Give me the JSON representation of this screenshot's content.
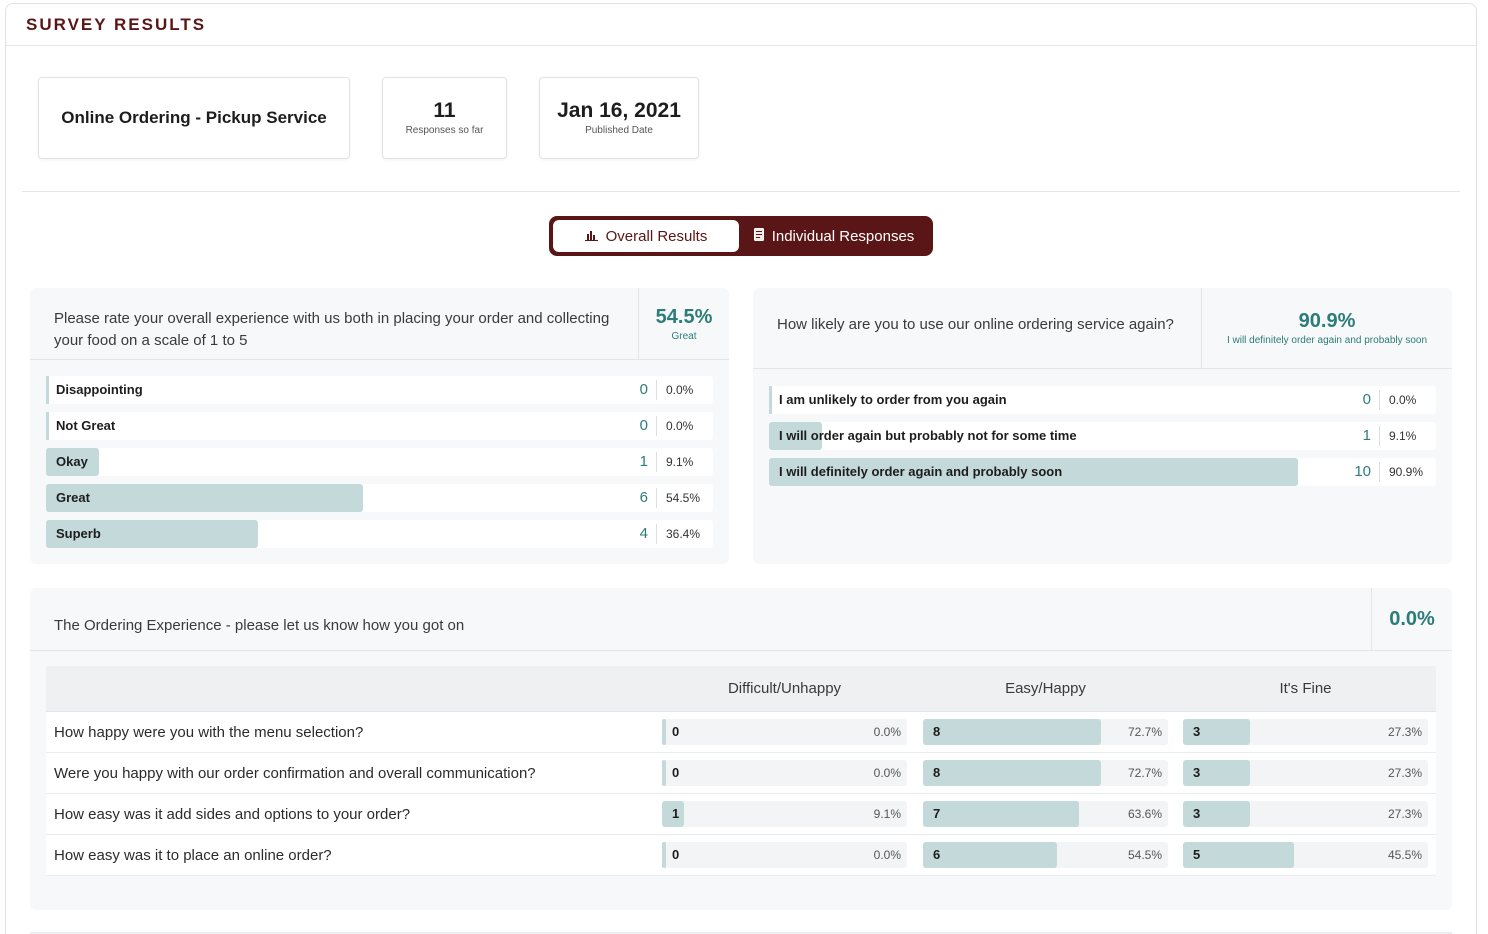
{
  "header": {
    "title": "SURVEY RESULTS"
  },
  "summary": {
    "survey_name": "Online Ordering - Pickup Service",
    "responses_value": "11",
    "responses_label": "Responses so far",
    "published_value": "Jan 16, 2021",
    "published_label": "Published Date"
  },
  "tabs": {
    "overall": {
      "label": "Overall Results",
      "icon": "bar-chart-icon"
    },
    "individual": {
      "label": "Individual Responses",
      "icon": "document-icon"
    }
  },
  "q1": {
    "text": "Please rate your overall experience with us both in placing your order and collecting your food on a scale of 1 to 5",
    "stat_pct": "54.5%",
    "stat_label": "Great",
    "options": [
      {
        "label": "Disappointing",
        "count": "0",
        "pct": "0.0%",
        "fraction": 0.0
      },
      {
        "label": "Not Great",
        "count": "0",
        "pct": "0.0%",
        "fraction": 0.0
      },
      {
        "label": "Okay",
        "count": "1",
        "pct": "9.1%",
        "fraction": 0.091
      },
      {
        "label": "Great",
        "count": "6",
        "pct": "54.5%",
        "fraction": 0.545
      },
      {
        "label": "Superb",
        "count": "4",
        "pct": "36.4%",
        "fraction": 0.364
      }
    ]
  },
  "q2": {
    "text": "How likely are you to use our online ordering service again?",
    "stat_pct": "90.9%",
    "stat_label": "I will definitely order again and probably soon",
    "options": [
      {
        "label": "I am unlikely to order from you again",
        "count": "0",
        "pct": "0.0%",
        "fraction": 0.0
      },
      {
        "label": "I will order again but probably not for some time",
        "count": "1",
        "pct": "9.1%",
        "fraction": 0.091
      },
      {
        "label": "I will definitely order again and probably soon",
        "count": "10",
        "pct": "90.9%",
        "fraction": 0.909
      }
    ]
  },
  "q3": {
    "text": "The Ordering Experience - please let us know how you got on",
    "stat_pct": "0.0%",
    "columns": [
      "Difficult/Unhappy",
      "Easy/Happy",
      "It's Fine"
    ],
    "rows": [
      {
        "question": "How happy were you with the menu selection?",
        "cells": [
          {
            "count": "0",
            "pct": "0.0%",
            "fraction": 0.0
          },
          {
            "count": "8",
            "pct": "72.7%",
            "fraction": 0.727
          },
          {
            "count": "3",
            "pct": "27.3%",
            "fraction": 0.273
          }
        ]
      },
      {
        "question": "Were you happy with our order confirmation and overall communication?",
        "cells": [
          {
            "count": "0",
            "pct": "0.0%",
            "fraction": 0.0
          },
          {
            "count": "8",
            "pct": "72.7%",
            "fraction": 0.727
          },
          {
            "count": "3",
            "pct": "27.3%",
            "fraction": 0.273
          }
        ]
      },
      {
        "question": "How easy was it add sides and options to your order?",
        "cells": [
          {
            "count": "1",
            "pct": "9.1%",
            "fraction": 0.091
          },
          {
            "count": "7",
            "pct": "63.6%",
            "fraction": 0.636
          },
          {
            "count": "3",
            "pct": "27.3%",
            "fraction": 0.273
          }
        ]
      },
      {
        "question": "How easy was it to place an online order?",
        "cells": [
          {
            "count": "0",
            "pct": "0.0%",
            "fraction": 0.0
          },
          {
            "count": "6",
            "pct": "54.5%",
            "fraction": 0.545
          },
          {
            "count": "5",
            "pct": "45.5%",
            "fraction": 0.455
          }
        ]
      }
    ]
  },
  "colors": {
    "brand": "#5a1616",
    "accent": "#2c7c78",
    "bar": "#c4d9d9"
  }
}
